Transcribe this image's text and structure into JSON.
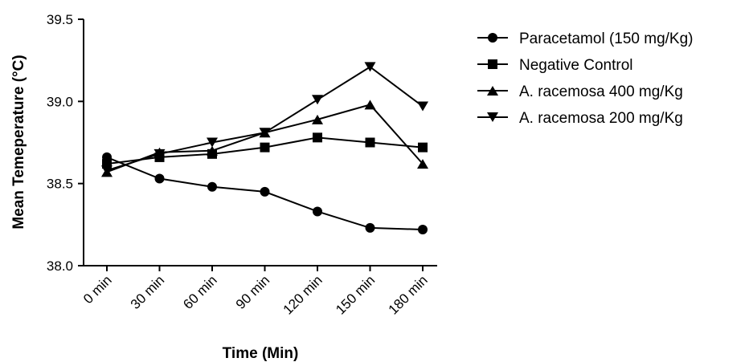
{
  "chart_data": {
    "type": "line",
    "xlabel": "Time (Min)",
    "ylabel": "Mean Temeperature (°C)",
    "categories": [
      "0 min",
      "30 min",
      "60 min",
      "90 min",
      "120 min",
      "150 min",
      "180 min"
    ],
    "ylim": [
      38.0,
      39.5
    ],
    "yticks": [
      "38.0",
      "38.5",
      "39.0",
      "39.5"
    ],
    "grid": false,
    "legend_position": "right",
    "series": [
      {
        "name": "Paracetamol (150 mg/Kg)",
        "marker": "circle",
        "color": "#000000",
        "values": [
          38.66,
          38.53,
          38.48,
          38.45,
          38.33,
          38.23,
          38.22
        ]
      },
      {
        "name": "Negative Control",
        "marker": "square",
        "color": "#000000",
        "values": [
          38.62,
          38.66,
          38.68,
          38.72,
          38.78,
          38.75,
          38.72
        ]
      },
      {
        "name": "A. racemosa 400 mg/Kg",
        "marker": "triangle-up",
        "color": "#000000",
        "values": [
          38.57,
          38.69,
          38.7,
          38.81,
          38.89,
          38.98,
          38.62
        ]
      },
      {
        "name": "A. racemosa 200 mg/Kg",
        "marker": "triangle-down",
        "color": "#000000",
        "values": [
          38.58,
          38.68,
          38.75,
          38.81,
          39.01,
          39.21,
          38.97
        ]
      }
    ]
  }
}
